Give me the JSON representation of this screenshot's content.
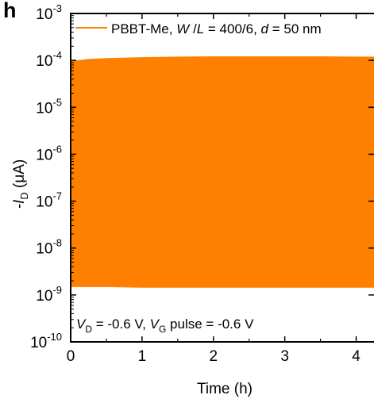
{
  "panel_label": "h",
  "chart_data": {
    "type": "area",
    "title": "",
    "xlabel": "Time (h)",
    "ylabel_prefix": "-I",
    "ylabel_sub": "D",
    "ylabel_suffix": " (μA)",
    "y_scale": "log",
    "xlim": [
      0,
      4.25
    ],
    "ylim": [
      1e-10,
      0.001
    ],
    "x_ticks": [
      "0",
      "1",
      "2",
      "3",
      "4"
    ],
    "x_tick_values": [
      0,
      1,
      2,
      3,
      4
    ],
    "y_tick_exponents": [
      "-10",
      "-9",
      "-8",
      "-7",
      "-6",
      "-5",
      "-4",
      "-3"
    ],
    "y_tick_base": "10",
    "grid": false,
    "series": [
      {
        "name": "PBBT-Me, W /L = 400/6, d = 50 nm",
        "color": "#ff8000",
        "x": [
          0,
          0.25,
          0.5,
          1,
          1.5,
          2,
          2.5,
          3,
          3.5,
          4,
          4.25
        ],
        "upper": [
          9.5e-05,
          0.000105,
          0.00011,
          0.000115,
          0.000118,
          0.00012,
          0.00012,
          0.00012,
          0.00012,
          0.000118,
          0.000118
        ],
        "lower": [
          1.5e-09,
          1.5e-09,
          1.5e-09,
          1.45e-09,
          1.45e-09,
          1.45e-09,
          1.45e-09,
          1.45e-09,
          1.45e-09,
          1.45e-09,
          1.45e-09
        ]
      }
    ],
    "legend": {
      "placement": "top",
      "prefix": "PBBT-Me, ",
      "w": "W",
      "sep": " /",
      "l": "L",
      "ratio": " = 400/6, ",
      "d": "d",
      "thickness": " = 50 nm"
    },
    "annotation": {
      "vd_v": "V",
      "vd_sub": "D",
      "vd_val": " = -0.6 V, ",
      "vg_v": "V",
      "vg_sub": "G",
      "vg_val": " pulse = -0.6 V"
    }
  }
}
